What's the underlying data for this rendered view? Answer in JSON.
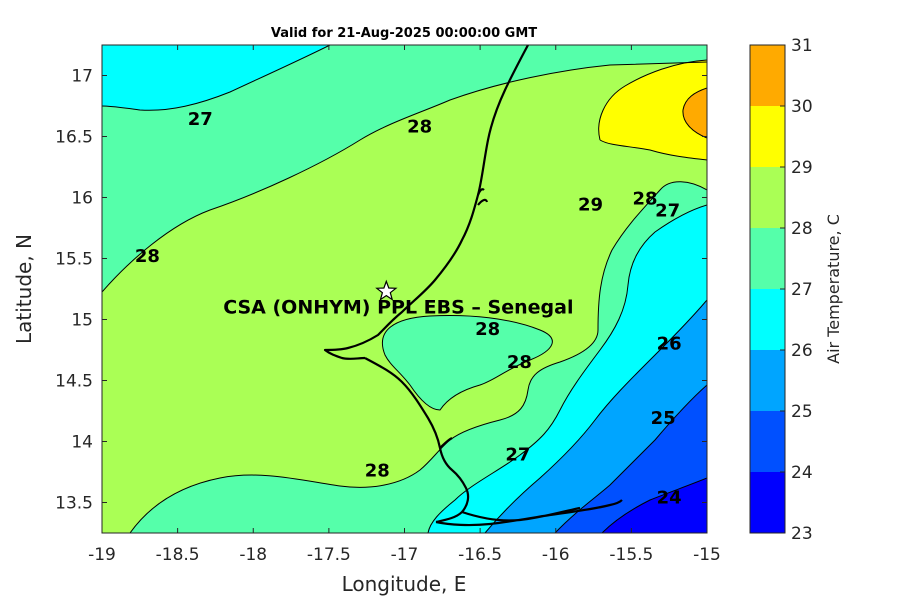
{
  "chart_data": {
    "type": "contour",
    "title": "Valid for 21-Aug-2025 00:00:00 GMT",
    "xlabel": "Longitude, E",
    "ylabel": "Latitude, N",
    "xlim": [
      -19,
      -15
    ],
    "ylim": [
      13.25,
      17.25
    ],
    "xticks": [
      "-19",
      "-18.5",
      "-18",
      "-17.5",
      "-17",
      "-16.5",
      "-16",
      "-15.5",
      "-15"
    ],
    "yticks": [
      "13.5",
      "14",
      "14.5",
      "15",
      "15.5",
      "16",
      "16.5",
      "17"
    ],
    "colorbar": {
      "label": "Air Temperature, C",
      "levels": [
        23,
        24,
        25,
        26,
        27,
        28,
        29,
        30,
        31
      ],
      "tick_labels": [
        "23",
        "24",
        "25",
        "26",
        "27",
        "28",
        "29",
        "30",
        "31"
      ],
      "colors": [
        "#0000ff",
        "#0050ff",
        "#00a5ff",
        "#00ffff",
        "#55ffaa",
        "#aaff55",
        "#ffff00",
        "#ffaa00",
        "#ff5000"
      ]
    },
    "contour_labels": [
      {
        "text": "27",
        "lon": -18.35,
        "lat": 16.65
      },
      {
        "text": "28",
        "lon": -16.9,
        "lat": 16.59
      },
      {
        "text": "29",
        "lon": -15.77,
        "lat": 15.95
      },
      {
        "text": "28",
        "lon": -15.41,
        "lat": 16.0
      },
      {
        "text": "27",
        "lon": -15.26,
        "lat": 15.9
      },
      {
        "text": "28",
        "lon": -18.7,
        "lat": 15.53
      },
      {
        "text": "28",
        "lon": -16.45,
        "lat": 14.93
      },
      {
        "text": "28",
        "lon": -16.24,
        "lat": 14.66
      },
      {
        "text": "26",
        "lon": -15.25,
        "lat": 14.81
      },
      {
        "text": "25",
        "lon": -15.29,
        "lat": 14.2
      },
      {
        "text": "27",
        "lon": -16.25,
        "lat": 13.9
      },
      {
        "text": "28",
        "lon": -17.18,
        "lat": 13.77
      },
      {
        "text": "24",
        "lon": -15.25,
        "lat": 13.55
      }
    ],
    "site": {
      "label": "CSA (ONHYM) PPL EBS  – Senegal",
      "lon": -17.12,
      "lat": 15.23
    }
  }
}
